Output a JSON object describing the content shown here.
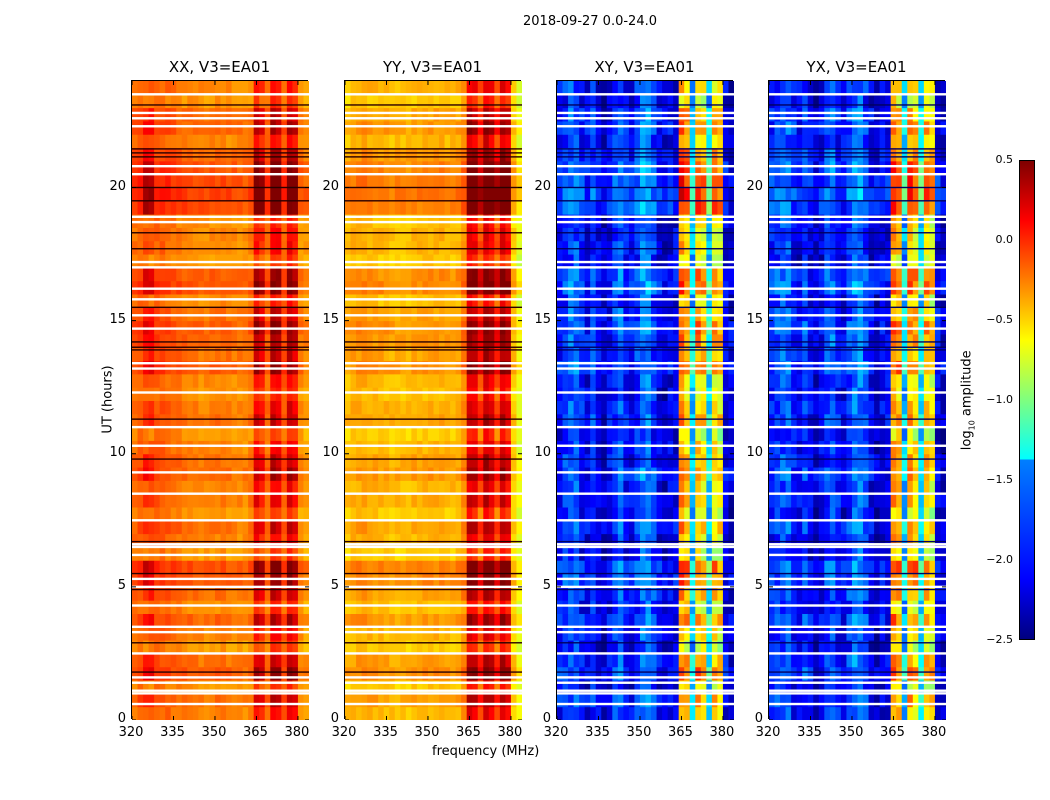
{
  "suptitle": "2018-09-27 0.0-24.0",
  "chart_data": {
    "type": "heatmap",
    "xlabel": "frequency (MHz)",
    "ylabel": "UT (hours)",
    "xlim": [
      320,
      384
    ],
    "ylim": [
      0,
      24
    ],
    "xticks": [
      "320",
      "335",
      "350",
      "365",
      "380"
    ],
    "yticks": [
      "0",
      "5",
      "10",
      "15",
      "20"
    ],
    "freq_bin_mhz": 2,
    "time_bin_hours": 0.5,
    "colorbar": {
      "label_main": "log",
      "label_sub": "10",
      "label_rest": " amplitude",
      "range": [
        -2.5,
        0.5
      ],
      "ticks": [
        "0.5",
        "0.0",
        "−0.5",
        "−1.0",
        "−1.5",
        "−2.0",
        "−2.5"
      ],
      "colormap": "jet"
    },
    "panels": [
      {
        "title": "XX, V3=EA01",
        "freq_profile": [
          -0.2,
          -0.15,
          -0.12,
          -0.12,
          -0.15,
          -0.15,
          -0.18,
          -0.2,
          -0.22,
          -0.25,
          -0.25,
          -0.27,
          -0.28,
          -0.28,
          -0.27,
          -0.25,
          -0.25,
          -0.28,
          -0.3,
          -0.3,
          -0.3,
          -0.25,
          0.1,
          0.0,
          -0.2,
          0.15,
          0.1,
          -0.15,
          0.15,
          0.05,
          -0.3,
          -0.35
        ]
      },
      {
        "title": "YY, V3=EA01",
        "freq_profile": [
          -0.45,
          -0.4,
          -0.38,
          -0.38,
          -0.4,
          -0.4,
          -0.42,
          -0.42,
          -0.45,
          -0.45,
          -0.45,
          -0.45,
          -0.42,
          -0.42,
          -0.4,
          -0.4,
          -0.4,
          -0.4,
          -0.42,
          -0.42,
          -0.4,
          -0.3,
          0.2,
          0.15,
          -0.1,
          0.25,
          0.15,
          -0.1,
          0.2,
          0.1,
          -0.5,
          -0.7
        ]
      },
      {
        "title": "XY, V3=EA01",
        "freq_profile": [
          -2.1,
          -2.0,
          -1.9,
          -1.9,
          -2.1,
          -2.2,
          -2.0,
          -2.2,
          -2.3,
          -2.2,
          -2.0,
          -1.9,
          -2.1,
          -2.2,
          -2.0,
          -1.8,
          -1.8,
          -2.0,
          -2.2,
          -2.3,
          -2.2,
          -2.2,
          -0.4,
          -0.5,
          -1.6,
          -0.5,
          -0.6,
          -1.5,
          -0.6,
          -0.7,
          -2.2,
          -2.3
        ]
      },
      {
        "title": "YX, V3=EA01",
        "freq_profile": [
          -2.1,
          -2.0,
          -1.9,
          -1.9,
          -2.1,
          -2.2,
          -2.0,
          -2.2,
          -2.3,
          -2.2,
          -2.0,
          -1.9,
          -2.1,
          -2.2,
          -2.0,
          -1.8,
          -1.8,
          -2.0,
          -2.2,
          -2.3,
          -2.2,
          -2.2,
          -0.4,
          -0.5,
          -1.6,
          -0.5,
          -0.6,
          -1.5,
          -0.6,
          -0.7,
          -2.2,
          -2.3
        ]
      }
    ],
    "time_profile": [
      0.0,
      0.1,
      -0.1,
      0.2,
      0.1,
      -0.1,
      0.0,
      0.15,
      -0.05,
      0.1,
      0.2,
      0.25,
      -0.1,
      0.0,
      0.1,
      -0.1,
      0.05,
      0.0,
      0.15,
      0.1,
      0.0,
      -0.1,
      0.1,
      0.05,
      -0.05,
      0.0,
      0.2,
      0.1,
      0.15,
      0.2,
      0.1,
      -0.05,
      0.25,
      0.2,
      -0.1,
      0.0,
      0.0,
      -0.05,
      0.3,
      0.35,
      0.3,
      0.25,
      0.15,
      0.0,
      0.15,
      0.1,
      -0.1,
      0.0
    ],
    "flagged_hours": [
      0.6,
      1.0,
      1.1,
      1.4,
      1.6,
      2.5,
      3.3,
      3.5,
      4.3,
      5.0,
      5.3,
      6.2,
      6.5,
      6.6,
      7.5,
      8.5,
      9.3,
      10.3,
      11.0,
      12.3,
      13.2,
      13.4,
      14.7,
      15.2,
      15.8,
      16.2,
      17.0,
      17.2,
      18.7,
      18.9,
      20.5,
      20.8,
      22.3,
      22.6,
      22.8,
      23.5
    ],
    "dark_hours": [
      1.8,
      2.9,
      4.9,
      5.5,
      6.7,
      9.8,
      11.3,
      13.9,
      14.0,
      14.2,
      15.5,
      17.7,
      18.3,
      19.5,
      20.0,
      21.15,
      21.3,
      21.45,
      23.1
    ]
  }
}
